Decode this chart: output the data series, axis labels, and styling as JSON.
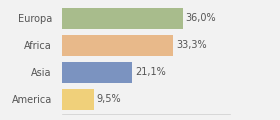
{
  "categories": [
    "Europa",
    "Africa",
    "Asia",
    "America"
  ],
  "values": [
    36.0,
    33.3,
    21.1,
    9.5
  ],
  "labels": [
    "36,0%",
    "33,3%",
    "21,1%",
    "9,5%"
  ],
  "bar_colors": [
    "#a8bc8c",
    "#e8b98a",
    "#7b93c0",
    "#f0d07a"
  ],
  "background_color": "#f2f2f2",
  "xlim": [
    0,
    50
  ],
  "bar_height": 0.78,
  "label_fontsize": 7,
  "category_fontsize": 7
}
